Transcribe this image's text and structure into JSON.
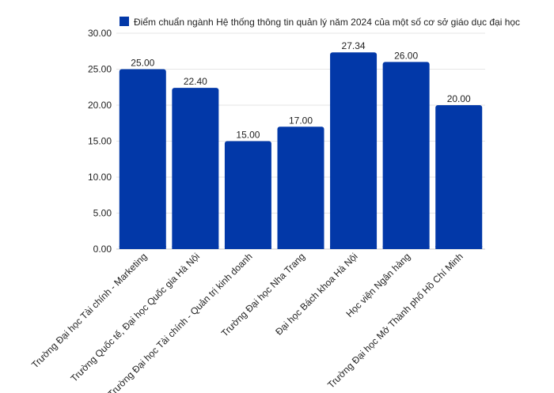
{
  "chart_data": {
    "type": "bar",
    "title": "Điểm chuẩn ngành Hệ thống thông tin quản lý năm 2024 của một số cơ sở giáo dục đại học",
    "legend": {
      "label": "Điểm chuẩn ngành Hệ thống thông tin quản lý năm 2024 của một số cơ sở giáo dục đại học",
      "placement": "top"
    },
    "categories": [
      "Trường Đại học Tài chính - Marketing",
      "Trường Quốc tế, Đại học Quốc gia Hà Nội",
      "Trường Đại học Tài chính - Quản trị kinh doanh",
      "Trường Đại học Nha Trang",
      "Đại học Bách khoa Hà Nội",
      "Học viện Ngân hàng",
      "Trường Đại học Mở Thành phố Hồ Chí Minh"
    ],
    "values": [
      25.0,
      22.4,
      15.0,
      17.0,
      27.34,
      26.0,
      20.0
    ],
    "data_labels": [
      "25.00",
      "22.40",
      "15.00",
      "17.00",
      "27.34",
      "26.00",
      "20.00"
    ],
    "ylim": [
      0,
      30
    ],
    "yticks": [
      "0.00",
      "5.00",
      "10.00",
      "15.00",
      "20.00",
      "25.00",
      "30.00"
    ],
    "xlabel": "",
    "ylabel": "",
    "grid": true,
    "bar_color": "#0238a8"
  }
}
